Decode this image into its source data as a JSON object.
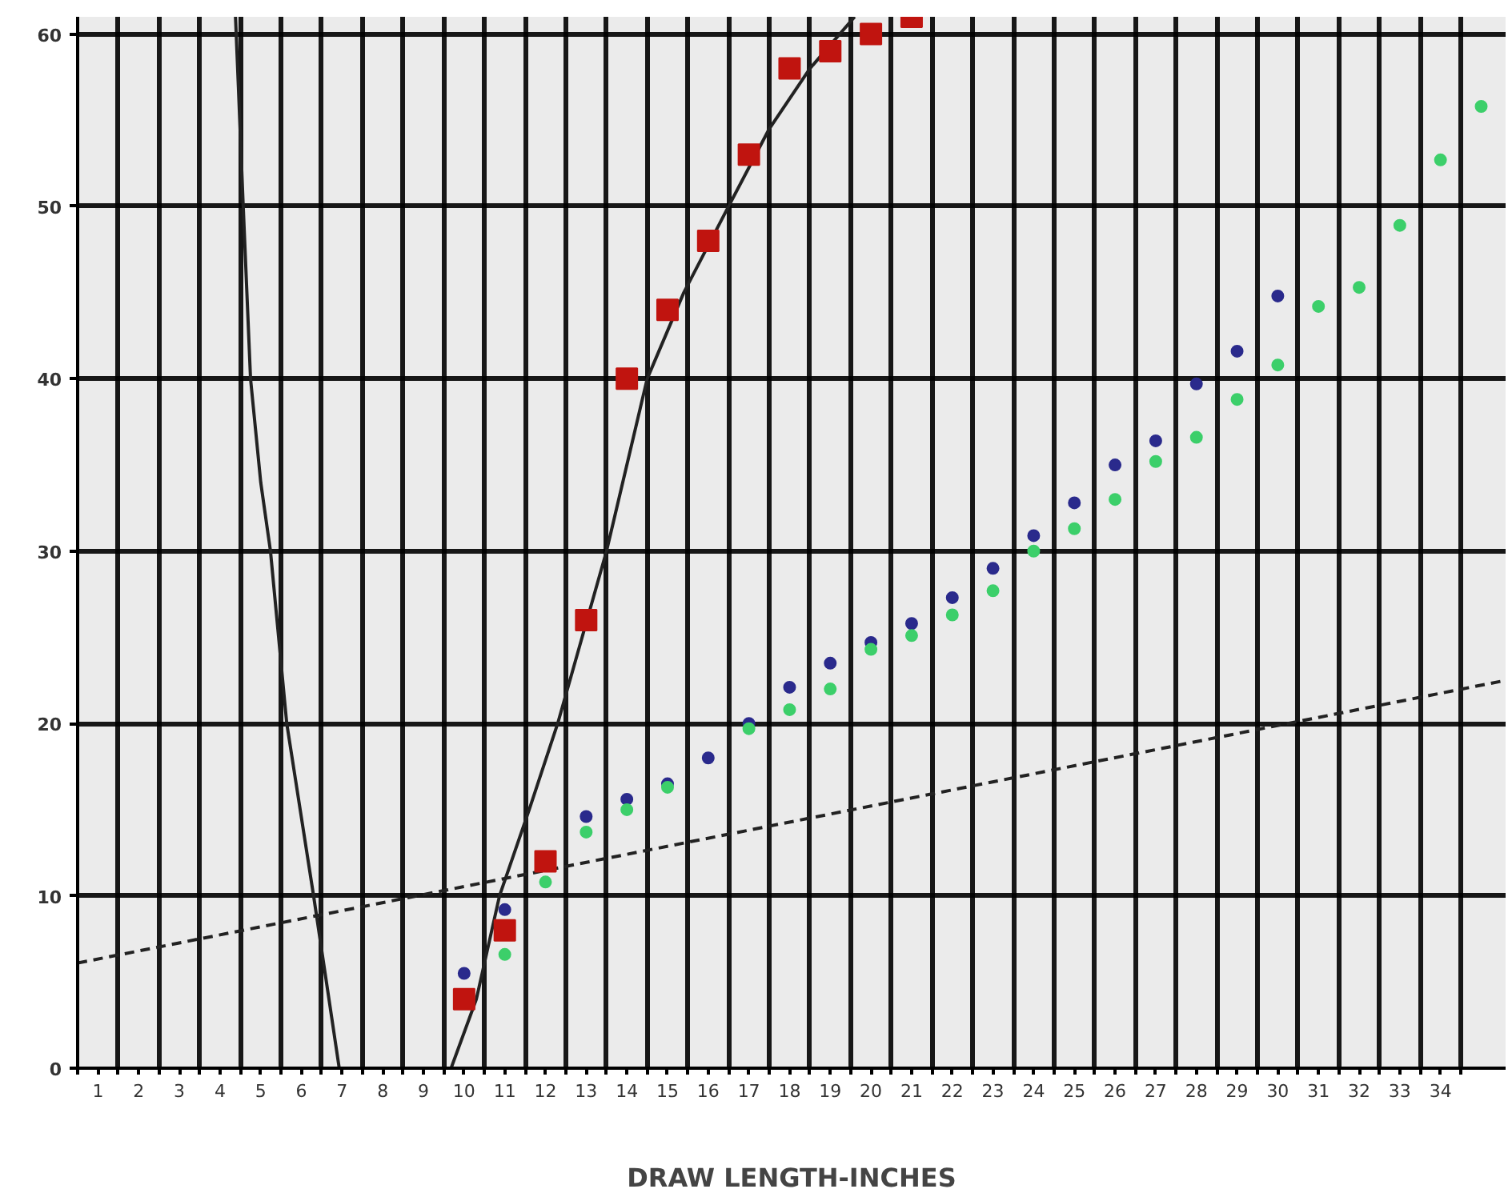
{
  "chart_data": {
    "type": "scatter",
    "xlabel": "DRAW LENGTH-INCHES",
    "xlim": [
      0.5,
      35.6
    ],
    "ylim": [
      0,
      61
    ],
    "xticks": [
      {
        "value": 0.5,
        "label": null
      },
      1,
      {
        "value": 1.5,
        "label": null
      },
      2,
      {
        "value": 2.5,
        "label": null
      },
      3,
      {
        "value": 3.5,
        "label": null
      },
      4,
      {
        "value": 4.5,
        "label": null
      },
      5,
      {
        "value": 5.5,
        "label": null
      },
      6,
      {
        "value": 6.5,
        "label": null
      },
      7,
      {
        "value": 7.5,
        "label": null
      },
      8,
      {
        "value": 8.5,
        "label": null
      },
      9,
      {
        "value": 9.5,
        "label": null
      },
      10,
      {
        "value": 10.5,
        "label": null
      },
      11,
      {
        "value": 11.5,
        "label": null
      },
      12,
      {
        "value": 12.5,
        "label": null
      },
      13,
      {
        "value": 13.5,
        "label": null
      },
      14,
      {
        "value": 14.5,
        "label": null
      },
      15,
      {
        "value": 15.5,
        "label": null
      },
      16,
      {
        "value": 16.5,
        "label": null
      },
      17,
      {
        "value": 17.5,
        "label": null
      },
      18,
      {
        "value": 18.5,
        "label": null
      },
      19,
      {
        "value": 19.5,
        "label": null
      },
      20,
      {
        "value": 20.5,
        "label": null
      },
      21,
      {
        "value": 21.5,
        "label": null
      },
      22,
      {
        "value": 22.5,
        "label": null
      },
      23,
      {
        "value": 23.5,
        "label": null
      },
      24,
      {
        "value": 24.5,
        "label": null
      },
      25,
      {
        "value": 25.5,
        "label": null
      },
      26,
      {
        "value": 26.5,
        "label": null
      },
      27,
      {
        "value": 27.5,
        "label": null
      },
      28,
      {
        "value": 28.5,
        "label": null
      },
      29,
      {
        "value": 29.5,
        "label": null
      },
      30,
      {
        "value": 30.5,
        "label": null
      },
      31,
      {
        "value": 31.5,
        "label": null
      },
      32,
      {
        "value": 32.5,
        "label": null
      },
      33,
      {
        "value": 33.5,
        "label": null
      },
      34,
      {
        "value": 34.5,
        "label": null
      }
    ],
    "yticks": [
      0,
      10,
      20,
      30,
      40,
      50,
      60
    ],
    "grid": true,
    "series": [
      {
        "type": "line",
        "color": "#222222",
        "line_style": "dashed",
        "x": [
          0.5,
          35.6
        ],
        "values": [
          6.1,
          22.5
        ]
      },
      {
        "type": "line",
        "color": "#222222",
        "line_style": "solid",
        "x": [
          4.38,
          4.45,
          4.57,
          4.75,
          5.0,
          5.24,
          5.64,
          6.3,
          6.93
        ],
        "values": [
          61,
          57,
          50,
          40,
          34,
          30,
          20,
          10,
          0
        ]
      },
      {
        "type": "line",
        "color": "#222222",
        "line_style": "solid",
        "x": [
          9.68,
          10.3,
          10.87,
          11.6,
          12.3,
          13.5,
          14.5,
          15.4,
          16.5,
          17.5,
          18.5,
          19.6
        ],
        "values": [
          0,
          4,
          10,
          15,
          20,
          30,
          40,
          45,
          50,
          54.5,
          58,
          61
        ]
      },
      {
        "marker": "circle",
        "color": "#2a2a8c",
        "x": [
          10,
          11,
          13,
          14,
          15,
          16,
          17,
          18,
          19,
          20,
          21,
          22,
          23,
          24,
          25,
          26,
          27,
          28,
          29,
          30
        ],
        "values": [
          5.5,
          9.2,
          14.6,
          15.6,
          16.5,
          18.0,
          20.0,
          22.1,
          23.5,
          24.7,
          25.8,
          27.3,
          29.0,
          30.9,
          32.8,
          35.0,
          36.4,
          39.7,
          41.6,
          44.8
        ]
      },
      {
        "marker": "circle",
        "color": "#3ccf6a",
        "x": [
          11,
          12,
          13,
          14,
          15,
          17,
          18,
          19,
          20,
          21,
          22,
          23,
          24,
          25,
          26,
          27,
          28,
          29,
          30,
          31,
          32,
          33,
          34,
          35
        ],
        "values": [
          6.6,
          10.8,
          13.7,
          15.0,
          16.3,
          19.7,
          20.8,
          22.0,
          24.3,
          25.1,
          26.3,
          27.7,
          30.0,
          31.3,
          33.0,
          35.2,
          36.6,
          38.8,
          40.8,
          44.2,
          45.3,
          48.9,
          52.7,
          55.8
        ]
      },
      {
        "marker": "square",
        "color": "#c0140f",
        "x": [
          10,
          11,
          12,
          13,
          14,
          15,
          16,
          17,
          18,
          19,
          20,
          21
        ],
        "values": [
          4,
          8,
          12,
          26,
          40,
          44,
          48,
          53,
          58,
          59,
          60,
          61
        ]
      }
    ]
  }
}
